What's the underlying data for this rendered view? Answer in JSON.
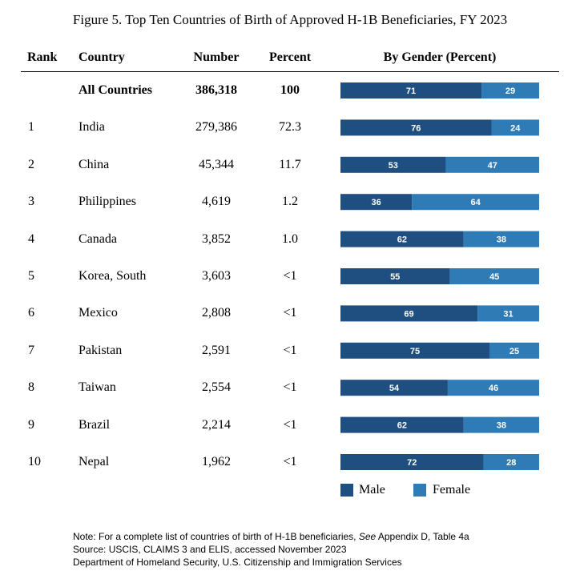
{
  "title": "Figure 5. Top Ten Countries of Birth of Approved H-1B Beneficiaries, FY 2023",
  "headers": {
    "rank": "Rank",
    "country": "Country",
    "number": "Number",
    "percent": "Percent",
    "gender": "By Gender (Percent)"
  },
  "rows": [
    {
      "rank": "",
      "country": "All Countries",
      "number": "386,318",
      "percent": "100",
      "male": 71,
      "female": 29,
      "bold": true
    },
    {
      "rank": "1",
      "country": "India",
      "number": "279,386",
      "percent": "72.3",
      "male": 76,
      "female": 24
    },
    {
      "rank": "2",
      "country": "China",
      "number": "45,344",
      "percent": "11.7",
      "male": 53,
      "female": 47
    },
    {
      "rank": "3",
      "country": "Philippines",
      "number": "4,619",
      "percent": "1.2",
      "male": 36,
      "female": 64
    },
    {
      "rank": "4",
      "country": "Canada",
      "number": "3,852",
      "percent": "1.0",
      "male": 62,
      "female": 38
    },
    {
      "rank": "5",
      "country": "Korea, South",
      "number": "3,603",
      "percent": "<1",
      "male": 55,
      "female": 45
    },
    {
      "rank": "6",
      "country": "Mexico",
      "number": "2,808",
      "percent": "<1",
      "male": 69,
      "female": 31
    },
    {
      "rank": "7",
      "country": "Pakistan",
      "number": "2,591",
      "percent": "<1",
      "male": 75,
      "female": 25
    },
    {
      "rank": "8",
      "country": "Taiwan",
      "number": "2,554",
      "percent": "<1",
      "male": 54,
      "female": 46
    },
    {
      "rank": "9",
      "country": "Brazil",
      "number": "2,214",
      "percent": "<1",
      "male": 62,
      "female": 38
    },
    {
      "rank": "10",
      "country": "Nepal",
      "number": "1,962",
      "percent": "<1",
      "male": 72,
      "female": 28
    }
  ],
  "legend": {
    "male": "Male",
    "female": "Female"
  },
  "colors": {
    "male": "#1f4e80",
    "female": "#2e7bb6"
  },
  "notes": [
    {
      "parts": [
        {
          "text": "Note: For a complete list of countries of birth of H-1B beneficiaries, ",
          "italic": false
        },
        {
          "text": "See",
          "italic": true
        },
        {
          "text": " Appendix D, Table 4a",
          "italic": false
        }
      ]
    },
    {
      "parts": [
        {
          "text": "Source: USCIS, CLAIMS 3 and ELIS, accessed November 2023",
          "italic": false
        }
      ]
    },
    {
      "parts": [
        {
          "text": "Department of Homeland Security, U.S. Citizenship and Immigration Services",
          "italic": false
        }
      ]
    }
  ],
  "chart_data": {
    "type": "bar",
    "orientation": "horizontal",
    "stacked": true,
    "title": "Figure 5. Top Ten Countries of Birth of Approved H-1B Beneficiaries, FY 2023",
    "categories": [
      "All Countries",
      "India",
      "China",
      "Philippines",
      "Canada",
      "Korea, South",
      "Mexico",
      "Pakistan",
      "Taiwan",
      "Brazil",
      "Nepal"
    ],
    "series": [
      {
        "name": "Male",
        "values": [
          71,
          76,
          53,
          36,
          62,
          55,
          69,
          75,
          54,
          62,
          72
        ]
      },
      {
        "name": "Female",
        "values": [
          29,
          24,
          47,
          64,
          38,
          45,
          31,
          25,
          46,
          38,
          28
        ]
      }
    ],
    "xlim": [
      0,
      100
    ],
    "legend": "bottom",
    "grid": false
  }
}
